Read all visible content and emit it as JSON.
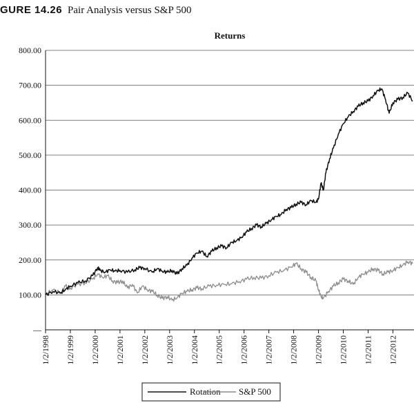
{
  "figure": {
    "label": "GURE 14.26",
    "title": "Pair Analysis versus S&P 500"
  },
  "chart_data": {
    "type": "line",
    "title": "Returns",
    "xlabel": "",
    "ylabel": "",
    "ylim": [
      0,
      800
    ],
    "yticks": [
      "800.00",
      "700.00",
      "600.00",
      "500.00",
      "400.00",
      "300.00",
      "200.00",
      "100.00",
      "—"
    ],
    "ytick_values": [
      800,
      700,
      600,
      500,
      400,
      300,
      200,
      100,
      0
    ],
    "xlim": [
      1998.0,
      2012.85
    ],
    "xtick_labels": [
      "1/2/1998",
      "1/2/1999",
      "1/2/2000",
      "1/2/2001",
      "1/2/2002",
      "1/2/2003",
      "1/2/2004",
      "1/2/2005",
      "1/2/2006",
      "1/2/2007",
      "1/2/2008",
      "1/2/2009",
      "1/2/2010",
      "1/2/2011",
      "1/2/2012"
    ],
    "xtick_values": [
      1998,
      1999,
      2000,
      2001,
      2002,
      2003,
      2004,
      2005,
      2006,
      2007,
      2008,
      2009,
      2010,
      2011,
      2012
    ],
    "grid": true,
    "legend_position": "bottom-center",
    "series": [
      {
        "name": "Rotation",
        "color": "#111111",
        "x": [
          1998.0,
          1998.3,
          1998.6,
          1998.8,
          1999.0,
          1999.3,
          1999.6,
          1999.9,
          2000.1,
          2000.2,
          2000.4,
          2000.6,
          2000.8,
          2001.0,
          2001.3,
          2001.6,
          2001.8,
          2002.0,
          2002.3,
          2002.5,
          2002.7,
          2002.9,
          2003.1,
          2003.3,
          2003.5,
          2003.7,
          2003.9,
          2004.1,
          2004.3,
          2004.5,
          2004.7,
          2004.9,
          2005.1,
          2005.3,
          2005.5,
          2005.7,
          2005.9,
          2006.1,
          2006.3,
          2006.5,
          2006.7,
          2006.9,
          2007.1,
          2007.3,
          2007.5,
          2007.7,
          2007.9,
          2008.1,
          2008.3,
          2008.5,
          2008.7,
          2008.9,
          2009.0,
          2009.1,
          2009.2,
          2009.3,
          2009.45,
          2009.6,
          2009.8,
          2010.0,
          2010.2,
          2010.4,
          2010.6,
          2010.8,
          2011.0,
          2011.2,
          2011.4,
          2011.55,
          2011.7,
          2011.85,
          2012.0,
          2012.2,
          2012.4,
          2012.6,
          2012.8
        ],
        "values": [
          100,
          110,
          105,
          115,
          125,
          135,
          140,
          155,
          178,
          170,
          165,
          172,
          168,
          170,
          165,
          172,
          178,
          176,
          165,
          175,
          168,
          165,
          170,
          160,
          175,
          185,
          205,
          220,
          225,
          210,
          225,
          235,
          240,
          235,
          250,
          255,
          265,
          280,
          290,
          300,
          295,
          305,
          315,
          325,
          330,
          345,
          350,
          360,
          365,
          358,
          370,
          365,
          375,
          420,
          400,
          450,
          490,
          520,
          560,
          590,
          610,
          625,
          640,
          650,
          655,
          670,
          685,
          690,
          660,
          620,
          650,
          660,
          665,
          678,
          655
        ]
      },
      {
        "name": "S&P 500",
        "color": "#8c8c8c",
        "x": [
          1998.0,
          1998.3,
          1998.6,
          1998.8,
          1999.0,
          1999.3,
          1999.6,
          1999.9,
          2000.1,
          2000.3,
          2000.5,
          2000.7,
          2000.9,
          2001.1,
          2001.3,
          2001.5,
          2001.7,
          2001.9,
          2002.1,
          2002.3,
          2002.5,
          2002.7,
          2002.9,
          2003.1,
          2003.3,
          2003.5,
          2003.7,
          2003.9,
          2004.1,
          2004.3,
          2004.6,
          2004.9,
          2005.2,
          2005.5,
          2005.8,
          2006.1,
          2006.4,
          2006.7,
          2007.0,
          2007.3,
          2007.6,
          2007.9,
          2008.1,
          2008.3,
          2008.5,
          2008.7,
          2008.9,
          2009.0,
          2009.1,
          2009.2,
          2009.4,
          2009.6,
          2009.8,
          2010.0,
          2010.2,
          2010.4,
          2010.6,
          2010.8,
          2011.0,
          2011.2,
          2011.4,
          2011.6,
          2011.8,
          2012.0,
          2012.2,
          2012.4,
          2012.6,
          2012.8
        ],
        "values": [
          100,
          115,
          105,
          125,
          120,
          130,
          135,
          145,
          160,
          150,
          155,
          140,
          135,
          140,
          120,
          130,
          105,
          125,
          115,
          110,
          100,
          90,
          95,
          85,
          92,
          105,
          110,
          115,
          120,
          118,
          125,
          128,
          130,
          132,
          138,
          145,
          150,
          148,
          155,
          165,
          170,
          180,
          190,
          175,
          165,
          150,
          140,
          115,
          95,
          90,
          110,
          125,
          135,
          145,
          140,
          130,
          150,
          160,
          165,
          175,
          170,
          160,
          165,
          170,
          178,
          185,
          195,
          190
        ]
      }
    ]
  }
}
